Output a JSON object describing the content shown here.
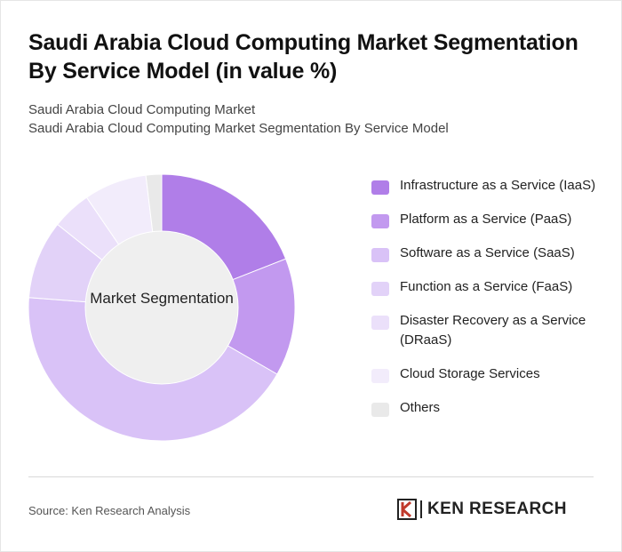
{
  "header": {
    "title": "Saudi Arabia Cloud Computing Market Segmentation By Service Model (in value %)",
    "subtitle_line1": "Saudi Arabia Cloud Computing Market",
    "subtitle_line2": "Saudi Arabia Cloud Computing Market Segmentation By Service Model"
  },
  "chart_data": {
    "type": "pie",
    "center_label": "Market Segmentation",
    "legend_position": "right",
    "categories": [
      "Infrastructure as a Service (IaaS)",
      "Platform as a Service (PaaS)",
      "Software as a Service (SaaS)",
      "Function as a Service (FaaS)",
      "Disaster Recovery as a Service (DRaaS)",
      "Cloud Storage Services",
      "Others"
    ],
    "values": [
      20,
      15,
      45,
      10,
      5,
      8,
      2
    ],
    "colors": [
      "#b07ee8",
      "#c299ef",
      "#d9c2f7",
      "#e2d2f8",
      "#ebe0fa",
      "#f2ecfb",
      "#e9e9e9"
    ],
    "center_color": "#efefef"
  },
  "footer": {
    "source": "Source: Ken Research Analysis",
    "logo_text": "KEN RESEARCH"
  }
}
